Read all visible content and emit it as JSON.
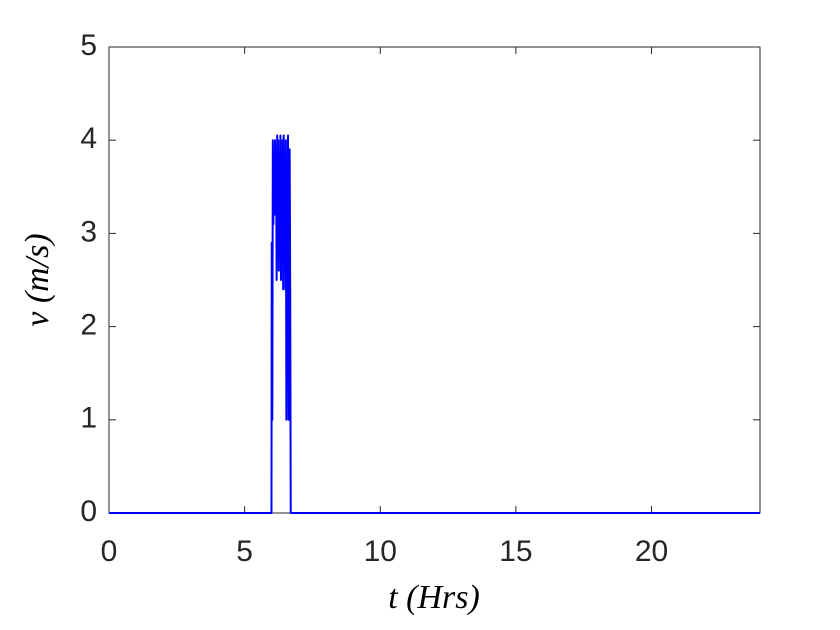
{
  "chart_data": {
    "type": "line",
    "x_label": "t (Hrs)",
    "y_label": "v (m/s)",
    "x": [
      0,
      5.99,
      6.0,
      6.02,
      6.04,
      6.06,
      6.08,
      6.1,
      6.12,
      6.14,
      6.16,
      6.18,
      6.2,
      6.22,
      6.24,
      6.26,
      6.28,
      6.3,
      6.32,
      6.34,
      6.36,
      6.38,
      6.4,
      6.42,
      6.44,
      6.46,
      6.48,
      6.5,
      6.52,
      6.54,
      6.56,
      6.58,
      6.6,
      6.62,
      6.64,
      6.66,
      6.68,
      6.7,
      24
    ],
    "series": [
      {
        "color": "#0000ff",
        "values": [
          0,
          0,
          2.9,
          1.0,
          4.0,
          3.1,
          3.8,
          3.2,
          4.0,
          3.3,
          3.9,
          2.5,
          4.05,
          3.0,
          4.0,
          2.6,
          3.7,
          2.9,
          4.05,
          2.5,
          3.9,
          3.2,
          4.0,
          2.4,
          4.05,
          3.0,
          3.8,
          2.4,
          4.0,
          1.0,
          3.6,
          2.8,
          4.05,
          1.0,
          2.4,
          3.9,
          2.4,
          0,
          0
        ]
      }
    ],
    "xlim": [
      0,
      24
    ],
    "xticks": [
      0,
      5,
      10,
      15,
      20
    ],
    "ylim": [
      0,
      5
    ],
    "yticks": [
      0,
      1,
      2,
      3,
      4,
      5
    ],
    "grid": false
  }
}
